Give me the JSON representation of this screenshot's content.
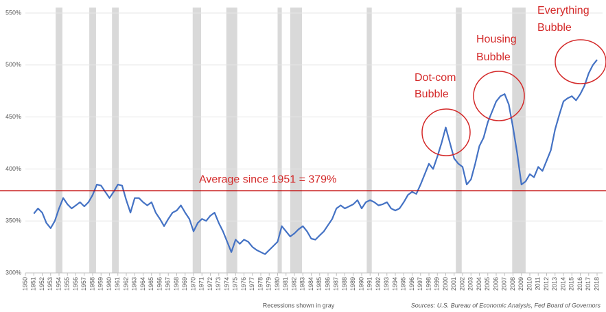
{
  "chart_data": {
    "type": "line",
    "x": [
      1951,
      1951.5,
      1952,
      1952.5,
      1953,
      1953.5,
      1954,
      1954.5,
      1955,
      1955.5,
      1956,
      1956.5,
      1957,
      1957.5,
      1958,
      1958.5,
      1959,
      1959.5,
      1960,
      1960.5,
      1961,
      1961.5,
      1962,
      1962.5,
      1963,
      1963.5,
      1964,
      1964.5,
      1965,
      1965.5,
      1966,
      1966.5,
      1967,
      1967.5,
      1968,
      1968.5,
      1969,
      1969.5,
      1970,
      1970.5,
      1971,
      1971.5,
      1972,
      1972.5,
      1973,
      1973.5,
      1974,
      1974.5,
      1975,
      1975.5,
      1976,
      1976.5,
      1977,
      1977.5,
      1978,
      1978.5,
      1979,
      1979.5,
      1980,
      1980.5,
      1981,
      1981.5,
      1982,
      1982.5,
      1983,
      1983.5,
      1984,
      1984.5,
      1985,
      1985.5,
      1986,
      1986.5,
      1987,
      1987.5,
      1988,
      1988.5,
      1989,
      1989.5,
      1990,
      1990.5,
      1991,
      1991.5,
      1992,
      1992.5,
      1993,
      1993.5,
      1994,
      1994.5,
      1995,
      1995.5,
      1996,
      1996.5,
      1997,
      1997.5,
      1998,
      1998.5,
      1999,
      1999.5,
      2000,
      2000.5,
      2001,
      2001.5,
      2002,
      2002.5,
      2003,
      2003.5,
      2004,
      2004.5,
      2005,
      2005.5,
      2006,
      2006.5,
      2007,
      2007.5,
      2008,
      2008.5,
      2009,
      2009.5,
      2010,
      2010.5,
      2011,
      2011.5,
      2012,
      2012.5,
      2013,
      2013.5,
      2014,
      2014.5,
      2015,
      2015.5,
      2016,
      2016.5,
      2017,
      2017.5,
      2018
    ],
    "values": [
      357,
      362,
      358,
      348,
      343,
      350,
      362,
      372,
      366,
      362,
      365,
      368,
      364,
      368,
      375,
      385,
      384,
      378,
      372,
      378,
      385,
      384,
      370,
      358,
      372,
      372,
      368,
      365,
      368,
      358,
      352,
      345,
      352,
      358,
      360,
      365,
      358,
      352,
      340,
      348,
      352,
      350,
      355,
      358,
      348,
      340,
      330,
      320,
      332,
      328,
      332,
      330,
      325,
      322,
      320,
      318,
      322,
      326,
      330,
      345,
      340,
      335,
      338,
      342,
      345,
      340,
      333,
      332,
      336,
      340,
      346,
      352,
      362,
      365,
      362,
      364,
      366,
      370,
      362,
      368,
      370,
      368,
      365,
      366,
      368,
      362,
      360,
      362,
      368,
      375,
      378,
      376,
      385,
      395,
      405,
      400,
      412,
      425,
      440,
      425,
      410,
      405,
      402,
      385,
      390,
      405,
      422,
      430,
      445,
      455,
      465,
      470,
      472,
      462,
      440,
      415,
      385,
      388,
      395,
      392,
      402,
      398,
      408,
      418,
      438,
      452,
      465,
      468,
      470,
      466,
      472,
      480,
      492,
      500,
      505
    ],
    "color": "#4472c4",
    "xlim": [
      1950,
      2018
    ],
    "xticks": [
      1950,
      1951,
      1952,
      1953,
      1954,
      1955,
      1956,
      1957,
      1958,
      1959,
      1960,
      1961,
      1962,
      1963,
      1964,
      1965,
      1966,
      1967,
      1968,
      1969,
      1970,
      1971,
      1972,
      1973,
      1974,
      1975,
      1976,
      1977,
      1978,
      1979,
      1980,
      1981,
      1982,
      1983,
      1984,
      1985,
      1986,
      1987,
      1988,
      1989,
      1990,
      1991,
      1992,
      1993,
      1994,
      1995,
      1996,
      1997,
      1998,
      1999,
      2000,
      2001,
      2002,
      2003,
      2004,
      2005,
      2006,
      2007,
      2008,
      2009,
      2010,
      2011,
      2012,
      2013,
      2014,
      2015,
      2016,
      2017,
      2018
    ],
    "ylim": [
      300,
      550
    ],
    "yticks": [
      {
        "value": 300,
        "label": "300%"
      },
      {
        "value": 350,
        "label": "350%"
      },
      {
        "value": 400,
        "label": "400%"
      },
      {
        "value": 450,
        "label": "450%"
      },
      {
        "value": 500,
        "label": "500%"
      },
      {
        "value": 550,
        "label": "550%"
      }
    ],
    "grid": true,
    "recessions": [
      [
        1953.6,
        1954.4
      ],
      [
        1957.6,
        1958.4
      ],
      [
        1960.3,
        1961.1
      ],
      [
        1969.9,
        1970.9
      ],
      [
        1973.9,
        1975.2
      ],
      [
        1980.0,
        1980.5
      ],
      [
        1981.5,
        1982.9
      ],
      [
        1990.6,
        1991.2
      ],
      [
        2001.2,
        2001.9
      ],
      [
        2007.9,
        2009.5
      ]
    ],
    "recession_color": "#d9d9d9",
    "average_line": {
      "value": 379,
      "color": "#c00000",
      "label": "Average since 1951 = 379%"
    },
    "annotations": [
      [
        "Dot-com",
        "Bubble"
      ],
      [
        "Housing",
        "Bubble"
      ],
      [
        "Everything",
        "Bubble"
      ]
    ],
    "footnote": "Recessions shown in gray",
    "source": "Sources: U.S. Bureau of Economic Analysis, Fed Board of Governors"
  }
}
